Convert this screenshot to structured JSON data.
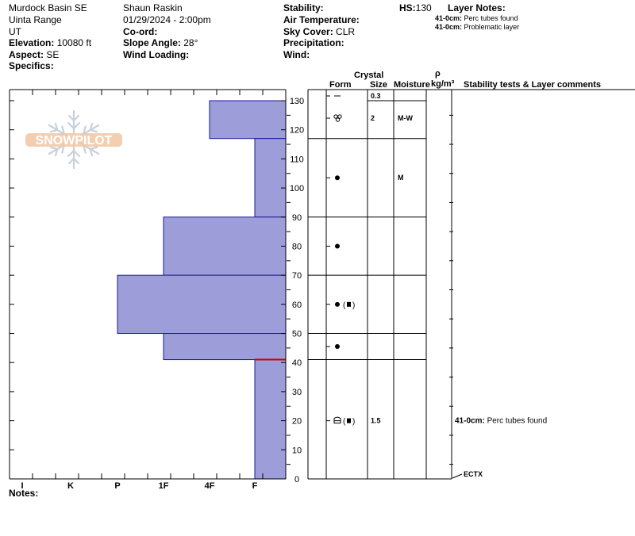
{
  "header": {
    "location": "Murdock Basin SE",
    "range": "Uinta Range",
    "state": "UT",
    "elevation_label": "Elevation:",
    "elevation_value": "10080 ft",
    "aspect_label": "Aspect:",
    "aspect_value": "SE",
    "specifics_label": "Specifics:",
    "observer": "Shaun Raskin",
    "datetime": "01/29/2024 - 2:00pm",
    "coord_label": "Co-ord:",
    "slope_label": "Slope Angle:",
    "slope_value": "28°",
    "wind_loading_label": "Wind Loading:",
    "stability_label": "Stability:",
    "air_temp_label": "Air Temperature:",
    "sky_label": "Sky Cover:",
    "sky_value": "CLR",
    "precip_label": "Precipitation:",
    "wind_label": "Wind:",
    "hs_label": "HS:",
    "hs_value": "130",
    "layer_notes_label": "Layer Notes:",
    "layer_notes": [
      {
        "depth": "41-0cm:",
        "text": "Perc tubes found"
      },
      {
        "depth": "41-0cm:",
        "text": "Problematic layer"
      }
    ]
  },
  "columns": {
    "crystal": "Crystal",
    "form": "Form",
    "size": "Size",
    "moisture": "Moisture",
    "rho": "ρ",
    "density_unit": "kg/m³",
    "comments": "Stability tests & Layer comments"
  },
  "logo_text": "SNOWPILOT",
  "notes_label": "Notes:",
  "chart_data": {
    "type": "bar",
    "ylim": [
      0,
      130
    ],
    "y_ticks": [
      0,
      10,
      20,
      30,
      40,
      50,
      60,
      70,
      80,
      90,
      100,
      110,
      120,
      130
    ],
    "hardness_scale": [
      "I",
      "K",
      "P",
      "1F",
      "4F",
      "F"
    ],
    "layers": [
      {
        "top": 130,
        "bottom": 117,
        "hardness": "4F"
      },
      {
        "top": 117,
        "bottom": 90,
        "hardness": "F"
      },
      {
        "top": 90,
        "bottom": 70,
        "hardness": "1F"
      },
      {
        "top": 70,
        "bottom": 50,
        "hardness": "P"
      },
      {
        "top": 50,
        "bottom": 41,
        "hardness": "1F"
      },
      {
        "top": 41,
        "bottom": 0,
        "hardness": "F"
      }
    ],
    "highlight_layer_depth": 41,
    "layer_boundaries": [
      117,
      90,
      70,
      50,
      41
    ],
    "crystal_rows": [
      {
        "form": "surface",
        "depth": 130,
        "size": "0.3",
        "moisture": ""
      },
      {
        "form": "mf",
        "depth": 124,
        "size": "2",
        "moisture": "M-W"
      },
      {
        "form": "dot",
        "depth": 103.5,
        "size": "",
        "moisture": "M"
      },
      {
        "form": "dot",
        "depth": 80,
        "size": "",
        "moisture": ""
      },
      {
        "form": "dot-sq",
        "depth": 60,
        "size": "",
        "moisture": ""
      },
      {
        "form": "dot",
        "depth": 45.5,
        "size": "",
        "moisture": ""
      },
      {
        "form": "cup-sq",
        "depth": 20,
        "size": "1.5",
        "moisture": ""
      }
    ],
    "comments": [
      {
        "depth": 20,
        "label": "41-0cm:",
        "text": "Perc tubes found"
      }
    ],
    "tests": [
      {
        "depth": 0,
        "text": "ECTX"
      }
    ]
  }
}
